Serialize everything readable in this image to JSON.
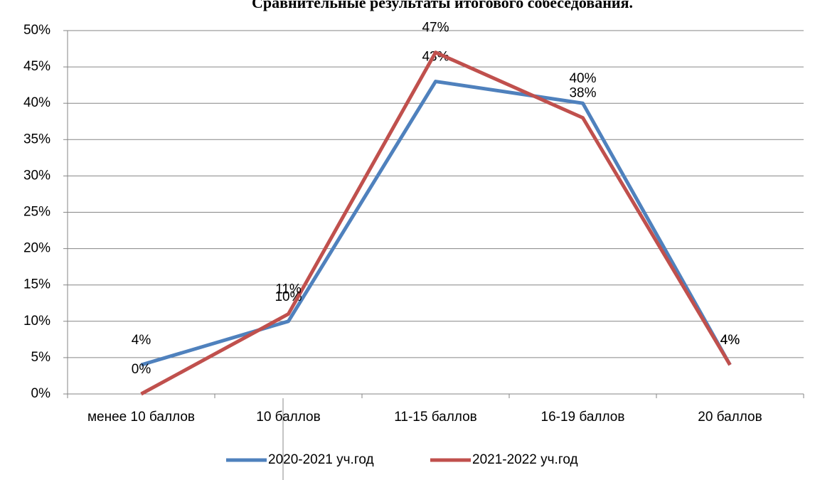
{
  "chart_data": {
    "type": "line",
    "title": "Сравнительные результаты итогового собеседования.",
    "categories": [
      "менее 10 баллов",
      "10 баллов",
      "11-15 баллов",
      "16-19 баллов",
      "20 баллов"
    ],
    "series": [
      {
        "name": "2020-2021 уч.год",
        "color": "#4f81bd",
        "values": [
          4,
          10,
          43,
          40,
          4
        ],
        "value_labels": [
          "4%",
          "10%",
          "43%",
          "40%",
          "4%"
        ]
      },
      {
        "name": "2021-2022 уч.год",
        "color": "#c0504d",
        "values": [
          0,
          11,
          47,
          38,
          4
        ],
        "value_labels": [
          "0%",
          "11%",
          "47%",
          "38%",
          "4%"
        ]
      }
    ],
    "ylim": [
      0,
      50
    ],
    "yticks": [
      {
        "value": 0,
        "label": "0%"
      },
      {
        "value": 5,
        "label": "5%"
      },
      {
        "value": 10,
        "label": "10%"
      },
      {
        "value": 15,
        "label": "15%"
      },
      {
        "value": 20,
        "label": "20%"
      },
      {
        "value": 25,
        "label": "25%"
      },
      {
        "value": 30,
        "label": "30%"
      },
      {
        "value": 35,
        "label": "35%"
      },
      {
        "value": 40,
        "label": "40%"
      },
      {
        "value": 45,
        "label": "45%"
      },
      {
        "value": 50,
        "label": "50%"
      }
    ],
    "grid": true,
    "legend": "bottom"
  }
}
